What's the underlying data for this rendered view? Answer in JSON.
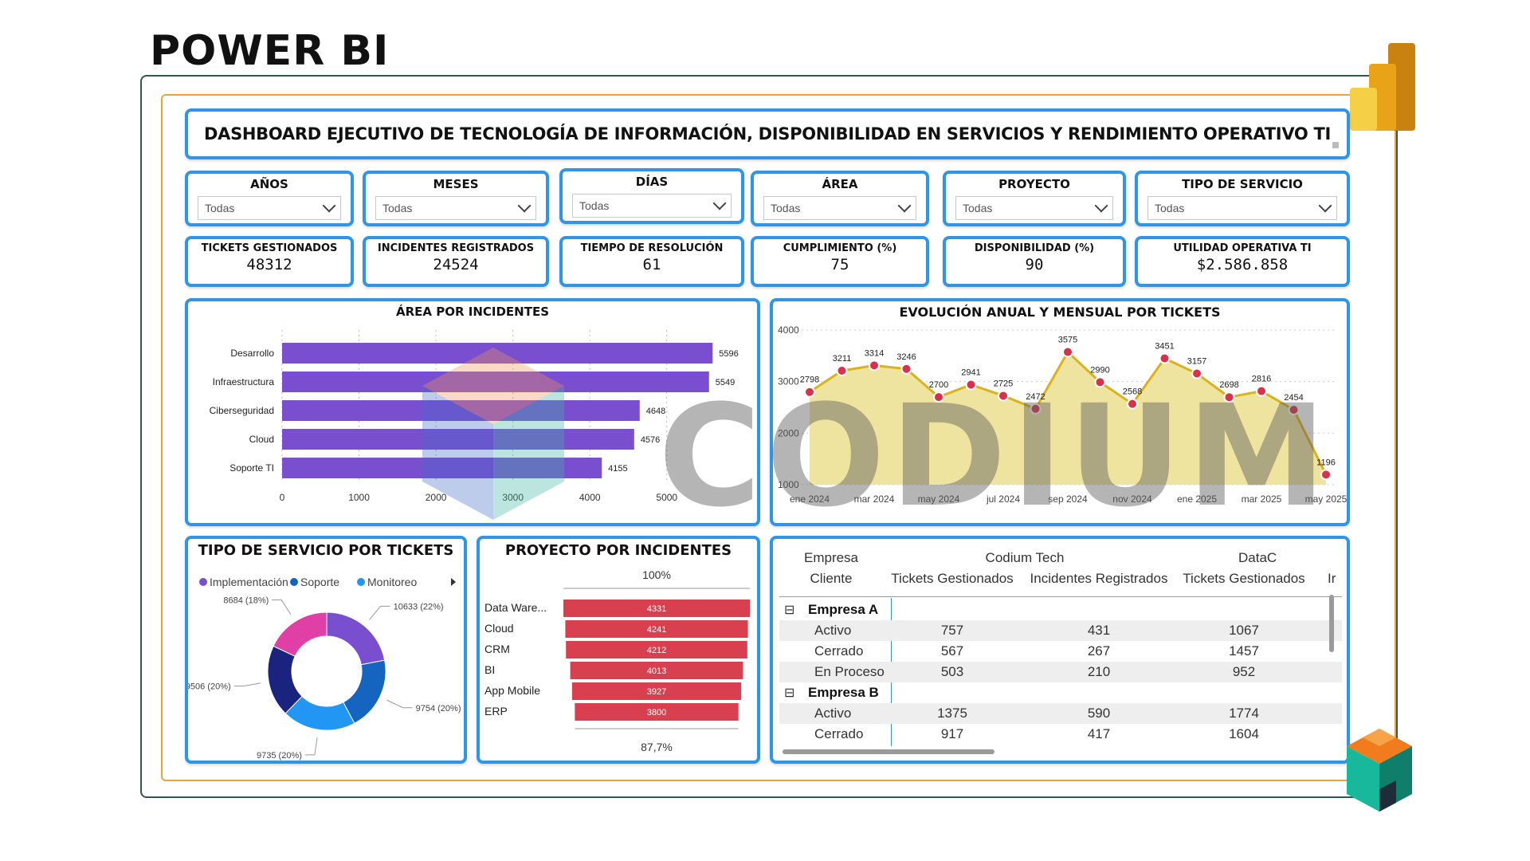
{
  "brand": "POWER BI",
  "watermark": "CODIUM",
  "dashboard_title": "DASHBOARD EJECUTIVO DE TECNOLOGÍA DE INFORMACIÓN, DISPONIBILIDAD EN SERVICIOS Y RENDIMIENTO OPERATIVO TI",
  "slicers": [
    {
      "label": "AÑOS",
      "value": "Todas"
    },
    {
      "label": "MESES",
      "value": "Todas"
    },
    {
      "label": "DÍAS",
      "value": "Todas"
    },
    {
      "label": "ÁREA",
      "value": "Todas"
    },
    {
      "label": "PROYECTO",
      "value": "Todas"
    },
    {
      "label": "TIPO DE SERVICIO",
      "value": "Todas"
    }
  ],
  "kpis": [
    {
      "label": "TICKETS GESTIONADOS",
      "value": "48312"
    },
    {
      "label": "INCIDENTES REGISTRADOS",
      "value": "24524"
    },
    {
      "label": "TIEMPO DE RESOLUCIÓN",
      "value": "61"
    },
    {
      "label": "CUMPLIMIENTO (%)",
      "value": "75"
    },
    {
      "label": "DISPONIBILIDAD (%)",
      "value": "90"
    },
    {
      "label": "UTILIDAD OPERATIVA TI",
      "value": "$2.586.858"
    }
  ],
  "chart_data": [
    {
      "type": "bar",
      "orientation": "horizontal",
      "title": "ÁREA POR INCIDENTES",
      "categories": [
        "Desarrollo",
        "Infraestructura",
        "Ciberseguridad",
        "Cloud",
        "Soporte TI"
      ],
      "values": [
        5596,
        5549,
        4648,
        4576,
        4155
      ],
      "xticks": [
        "0",
        "1000",
        "2000",
        "3000",
        "4000",
        "5000"
      ],
      "xlim": [
        0,
        5800
      ],
      "color": "#7a4fcf"
    },
    {
      "type": "area",
      "title": "EVOLUCIÓN ANUAL Y MENSUAL POR TICKETS",
      "x": [
        "ene 2024",
        "feb 2024",
        "mar 2024",
        "abr 2024",
        "may 2024",
        "jun 2024",
        "jul 2024",
        "ago 2024",
        "sep 2024",
        "oct 2024",
        "nov 2024",
        "dic 2024",
        "ene 2025",
        "feb 2025",
        "mar 2025",
        "abr 2025",
        "may 2025"
      ],
      "values": [
        2798,
        3211,
        3314,
        3246,
        2700,
        2941,
        2725,
        2472,
        3575,
        2990,
        2568,
        3451,
        3157,
        2698,
        2816,
        2454,
        1196
      ],
      "xticks": [
        "ene 2024",
        "mar 2024",
        "may 2024",
        "jul 2024",
        "sep 2024",
        "nov 2024",
        "ene 2025",
        "mar 2025",
        "may 2025"
      ],
      "yticks": [
        "1000",
        "2000",
        "3000",
        "4000"
      ],
      "ylim": [
        1000,
        4000
      ],
      "fill_color": "#efe3a0",
      "line_color": "#d9b21c",
      "marker_color": "#d6334a"
    },
    {
      "type": "pie",
      "title": "TIPO DE SERVICIO POR TICKETS",
      "legend": [
        "Implementación",
        "Soporte",
        "Monitoreo"
      ],
      "legend_colors": [
        "#7a4fcf",
        "#1565c0",
        "#2196f3"
      ],
      "slices": [
        {
          "label": "10633 (22%)",
          "value": 10633,
          "color": "#7a4fcf"
        },
        {
          "label": "9754 (20%)",
          "value": 9754,
          "color": "#1565c0"
        },
        {
          "label": "9735 (20%)",
          "value": 9735,
          "color": "#2196f3"
        },
        {
          "label": "9506 (20%)",
          "value": 9506,
          "color": "#1a237e"
        },
        {
          "label": "8684 (18%)",
          "value": 8684,
          "color": "#e040a6"
        }
      ]
    },
    {
      "type": "bar",
      "subtype": "funnel",
      "title": "PROYECTO POR INCIDENTES",
      "categories": [
        "Data Ware...",
        "Cloud",
        "CRM",
        "BI",
        "App Mobile",
        "ERP"
      ],
      "values": [
        4331,
        4241,
        4212,
        4013,
        3927,
        3800
      ],
      "top_label": "100%",
      "bottom_label": "87,7%",
      "color": "#d9404f"
    }
  ],
  "matrix": {
    "headers": {
      "col1_line1": "Empresa",
      "col1_line2": "Cliente",
      "group1": "Codium Tech",
      "group2": "DataC",
      "h1": "Tickets Gestionados",
      "h2": "Incidentes Registrados",
      "h3": "Tickets Gestionados",
      "h4": "Ir"
    },
    "rows": [
      {
        "type": "group",
        "label": "Empresa A",
        "toggle": "⊟"
      },
      {
        "type": "row",
        "label": "Activo",
        "v1": "757",
        "v2": "431",
        "v3": "1067"
      },
      {
        "type": "row",
        "label": "Cerrado",
        "v1": "567",
        "v2": "267",
        "v3": "1457"
      },
      {
        "type": "row",
        "label": "En Proceso",
        "v1": "503",
        "v2": "210",
        "v3": "952"
      },
      {
        "type": "group",
        "label": "Empresa B",
        "toggle": "⊟"
      },
      {
        "type": "row",
        "label": "Activo",
        "v1": "1375",
        "v2": "590",
        "v3": "1774"
      },
      {
        "type": "row",
        "label": "Cerrado",
        "v1": "917",
        "v2": "417",
        "v3": "1604"
      }
    ]
  }
}
